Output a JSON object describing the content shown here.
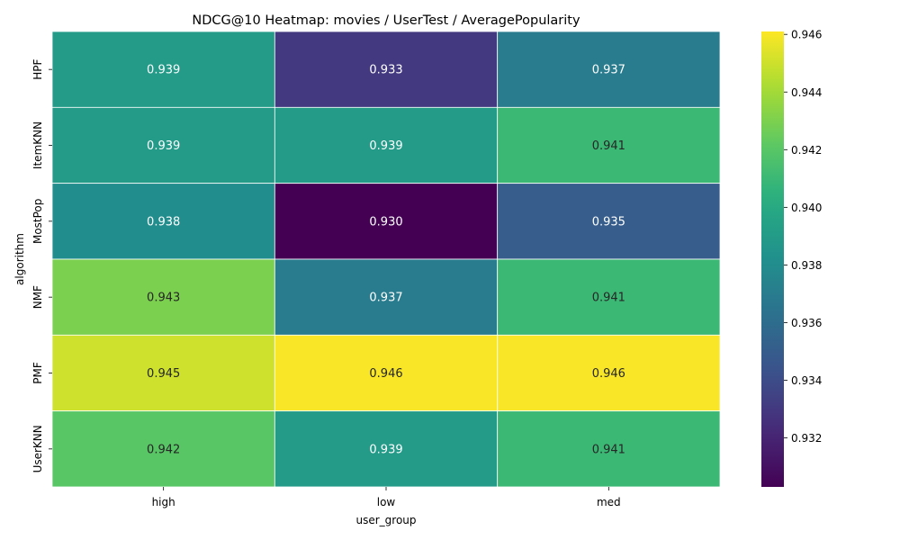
{
  "chart_data": {
    "type": "heatmap",
    "title": "NDCG@10 Heatmap: movies / UserTest / AveragePopularity",
    "xlabel": "user_group",
    "ylabel": "algorithm",
    "x_categories": [
      "high",
      "low",
      "med"
    ],
    "y_categories": [
      "HPF",
      "ItemKNN",
      "MostPop",
      "NMF",
      "PMF",
      "UserKNN"
    ],
    "values": [
      [
        0.939,
        0.933,
        0.937
      ],
      [
        0.939,
        0.939,
        0.941
      ],
      [
        0.938,
        0.93,
        0.935
      ],
      [
        0.943,
        0.937,
        0.941
      ],
      [
        0.945,
        0.946,
        0.946
      ],
      [
        0.942,
        0.939,
        0.941
      ]
    ],
    "value_labels": [
      [
        "0.939",
        "0.933",
        "0.937"
      ],
      [
        "0.939",
        "0.939",
        "0.941"
      ],
      [
        "0.938",
        "0.930",
        "0.935"
      ],
      [
        "0.943",
        "0.937",
        "0.941"
      ],
      [
        "0.945",
        "0.946",
        "0.946"
      ],
      [
        "0.942",
        "0.939",
        "0.941"
      ]
    ],
    "colormap": "viridis",
    "color_range": [
      0.9303,
      0.9461
    ],
    "colorbar_ticks": [
      "0.932",
      "0.934",
      "0.936",
      "0.938",
      "0.940",
      "0.942",
      "0.944",
      "0.946"
    ],
    "colorbar_tick_values": [
      0.932,
      0.934,
      0.936,
      0.938,
      0.94,
      0.942,
      0.944,
      0.946
    ],
    "cell_border_color": "#ffffff",
    "text_color_light": "#ffffff",
    "text_color_dark": "#262626"
  }
}
